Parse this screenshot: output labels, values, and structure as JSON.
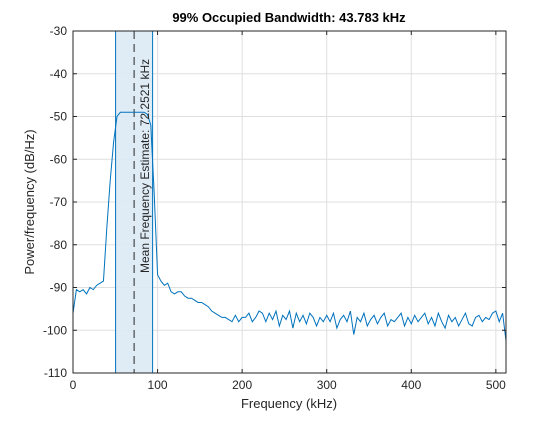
{
  "chart_data": {
    "type": "line",
    "title": "99% Occupied Bandwidth: 43.783 kHz",
    "xlabel": "Frequency (kHz)",
    "ylabel": "Power/frequency (dB/Hz)",
    "xlim": [
      0,
      512
    ],
    "ylim": [
      -110,
      -30
    ],
    "xticks": [
      0,
      100,
      200,
      300,
      400,
      500
    ],
    "yticks": [
      -110,
      -100,
      -90,
      -80,
      -70,
      -60,
      -50,
      -40,
      -30
    ],
    "grid": true,
    "line_color": "#0072bd",
    "band_fill": "#dceaf5",
    "band": {
      "lower": 50.36,
      "upper": 94.14,
      "bandwidth_label": "99% Occupied Bandwidth: 43.783 kHz"
    },
    "mean_frequency": {
      "value": 72.2521,
      "label": "Mean Frequency Estimate: 72.2521 kHz"
    },
    "series": [
      {
        "x": [
          0,
          4,
          8,
          12,
          16,
          20,
          24,
          28,
          32,
          36,
          40,
          44,
          48,
          52,
          56,
          60,
          64,
          68,
          72,
          76,
          80,
          84,
          88,
          92,
          96,
          100,
          104,
          108,
          112,
          116,
          120,
          124,
          128,
          132,
          136,
          140,
          144,
          148,
          152,
          156,
          160,
          164,
          168,
          172,
          176,
          180,
          184,
          188,
          192,
          196,
          200,
          204,
          208,
          212,
          216,
          220,
          224,
          228,
          232,
          236,
          240,
          244,
          248,
          252,
          256,
          260,
          264,
          268,
          272,
          276,
          280,
          284,
          288,
          292,
          296,
          300,
          304,
          308,
          312,
          316,
          320,
          324,
          328,
          332,
          336,
          340,
          344,
          348,
          352,
          356,
          360,
          364,
          368,
          372,
          376,
          380,
          384,
          388,
          392,
          396,
          400,
          404,
          408,
          412,
          416,
          420,
          424,
          428,
          432,
          436,
          440,
          444,
          448,
          452,
          456,
          460,
          464,
          468,
          472,
          476,
          480,
          484,
          488,
          492,
          496,
          500,
          504,
          508,
          512
        ],
        "y": [
          -96,
          -90.5,
          -91,
          -90.5,
          -91.5,
          -90,
          -90.5,
          -89.5,
          -89,
          -88.5,
          -76,
          -65,
          -56,
          -50,
          -49,
          -49,
          -49,
          -49,
          -49,
          -49,
          -49,
          -49,
          -49.5,
          -52,
          -68,
          -87,
          -88.5,
          -89.5,
          -89,
          -91,
          -91.5,
          -91,
          -91,
          -92,
          -92.5,
          -92.5,
          -93,
          -93.5,
          -93.5,
          -94,
          -94.5,
          -95.5,
          -96,
          -96.5,
          -97,
          -97,
          -97.5,
          -98,
          -96.5,
          -98,
          -97,
          -97,
          -96,
          -98,
          -97,
          -95.5,
          -96,
          -98,
          -96,
          -97.5,
          -95.5,
          -99,
          -96.5,
          -97.5,
          -95.5,
          -99.5,
          -96,
          -98,
          -96.5,
          -98.5,
          -96,
          -97,
          -99,
          -97,
          -98,
          -96.5,
          -98,
          -96,
          -99.5,
          -97.5,
          -96.5,
          -98,
          -95.5,
          -101,
          -97,
          -98,
          -96,
          -99,
          -97.5,
          -96.5,
          -98.5,
          -97,
          -96,
          -99,
          -97.5,
          -98,
          -97,
          -96,
          -99,
          -97,
          -98.5,
          -96.5,
          -98,
          -97,
          -96,
          -98.5,
          -97,
          -99,
          -96,
          -98,
          -99.5,
          -96.5,
          -98,
          -97,
          -99,
          -97.5,
          -96,
          -98.5,
          -99,
          -97,
          -96.5,
          -98,
          -97,
          -97.5,
          -96,
          -95.5,
          -98,
          -96,
          -102.5
        ]
      }
    ]
  }
}
